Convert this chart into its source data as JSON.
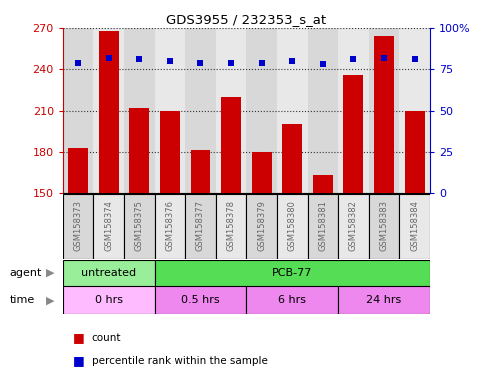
{
  "title": "GDS3955 / 232353_s_at",
  "samples": [
    "GSM158373",
    "GSM158374",
    "GSM158375",
    "GSM158376",
    "GSM158377",
    "GSM158378",
    "GSM158379",
    "GSM158380",
    "GSM158381",
    "GSM158382",
    "GSM158383",
    "GSM158384"
  ],
  "counts": [
    183,
    268,
    212,
    210,
    181,
    220,
    180,
    200,
    163,
    236,
    264,
    210
  ],
  "percentiles": [
    79,
    82,
    81,
    80,
    79,
    79,
    79,
    80,
    78,
    81,
    82,
    81
  ],
  "ylim_left": [
    150,
    270
  ],
  "yticks_left": [
    150,
    180,
    210,
    240,
    270
  ],
  "ylim_right": [
    0,
    100
  ],
  "yticks_right": [
    0,
    25,
    50,
    75,
    100
  ],
  "bar_color": "#cc0000",
  "dot_color": "#0000cc",
  "agent_labels": [
    {
      "label": "untreated",
      "start": 0,
      "end": 3,
      "color": "#99ee99"
    },
    {
      "label": "PCB-77",
      "start": 3,
      "end": 12,
      "color": "#55dd55"
    }
  ],
  "time_labels": [
    {
      "label": "0 hrs",
      "start": 0,
      "end": 3,
      "color": "#ffbbff"
    },
    {
      "label": "0.5 hrs",
      "start": 3,
      "end": 6,
      "color": "#ee88ee"
    },
    {
      "label": "6 hrs",
      "start": 6,
      "end": 9,
      "color": "#ee88ee"
    },
    {
      "label": "24 hrs",
      "start": 9,
      "end": 12,
      "color": "#ee88ee"
    }
  ],
  "col_bg_even": "#d8d8d8",
  "col_bg_odd": "#e8e8e8",
  "tick_label_color": "#666666",
  "left_axis_color": "#cc0000",
  "right_axis_color": "#0000cc",
  "background_color": "#ffffff",
  "gridline_color": "#333333",
  "border_color": "#000000"
}
